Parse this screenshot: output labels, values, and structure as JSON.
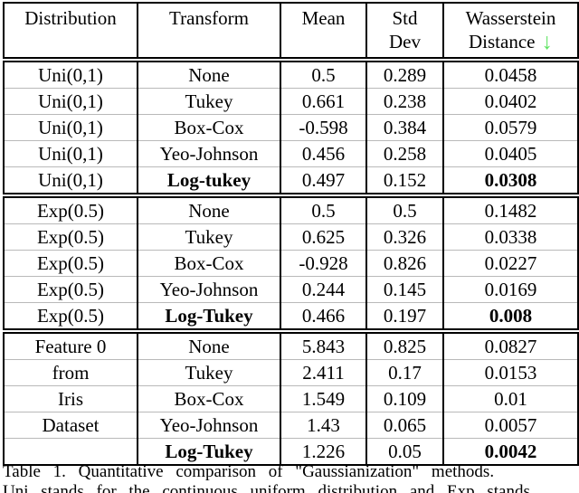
{
  "colors": {
    "arrow_green": "#5fe463",
    "border_black": "#000000",
    "row_separator_gray": "#b9b9b9"
  },
  "table": {
    "header": {
      "distribution": "Distribution",
      "transform": "Transform",
      "mean": "Mean",
      "std_line1": "Std",
      "std_line2": "Dev",
      "wasserstein_line1": "Wasserstein",
      "wasserstein_line2": "Distance",
      "sort_arrow": "↓"
    },
    "blocks": [
      {
        "rows": [
          {
            "distribution": "Uni(0,1)",
            "transform": "None",
            "mean": "0.5",
            "std": "0.289",
            "wasserstein": "0.0458",
            "bold": false
          },
          {
            "distribution": "Uni(0,1)",
            "transform": "Tukey",
            "mean": "0.661",
            "std": "0.238",
            "wasserstein": "0.0402",
            "bold": false
          },
          {
            "distribution": "Uni(0,1)",
            "transform": "Box-Cox",
            "mean": "-0.598",
            "std": "0.384",
            "wasserstein": "0.0579",
            "bold": false
          },
          {
            "distribution": "Uni(0,1)",
            "transform": "Yeo-Johnson",
            "mean": "0.456",
            "std": "0.258",
            "wasserstein": "0.0405",
            "bold": false
          },
          {
            "distribution": "Uni(0,1)",
            "transform": "Log-tukey",
            "mean": "0.497",
            "std": "0.152",
            "wasserstein": "0.0308",
            "bold": true
          }
        ]
      },
      {
        "rows": [
          {
            "distribution": "Exp(0.5)",
            "transform": "None",
            "mean": "0.5",
            "std": "0.5",
            "wasserstein": "0.1482",
            "bold": false
          },
          {
            "distribution": "Exp(0.5)",
            "transform": "Tukey",
            "mean": "0.625",
            "std": "0.326",
            "wasserstein": "0.0338",
            "bold": false
          },
          {
            "distribution": "Exp(0.5)",
            "transform": "Box-Cox",
            "mean": "-0.928",
            "std": "0.826",
            "wasserstein": "0.0227",
            "bold": false
          },
          {
            "distribution": "Exp(0.5)",
            "transform": "Yeo-Johnson",
            "mean": "0.244",
            "std": "0.145",
            "wasserstein": "0.0169",
            "bold": false
          },
          {
            "distribution": "Exp(0.5)",
            "transform": "Log-Tukey",
            "mean": "0.466",
            "std": "0.197",
            "wasserstein": "0.008",
            "bold": true
          }
        ]
      },
      {
        "rows": [
          {
            "distribution": "Feature 0",
            "transform": "None",
            "mean": "5.843",
            "std": "0.825",
            "wasserstein": "0.0827",
            "bold": false
          },
          {
            "distribution": "from",
            "transform": "Tukey",
            "mean": "2.411",
            "std": "0.17",
            "wasserstein": "0.0153",
            "bold": false
          },
          {
            "distribution": "Iris",
            "transform": "Box-Cox",
            "mean": "1.549",
            "std": "0.109",
            "wasserstein": "0.01",
            "bold": false
          },
          {
            "distribution": "Dataset",
            "transform": "Yeo-Johnson",
            "mean": "1.43",
            "std": "0.065",
            "wasserstein": "0.0057",
            "bold": false
          },
          {
            "distribution": "",
            "transform": "Log-Tukey",
            "mean": "1.226",
            "std": "0.05",
            "wasserstein": "0.0042",
            "bold": true
          }
        ]
      }
    ]
  },
  "caption": {
    "line1": "Table 1. Quantitative comparison of \"Gaussianization\" methods.",
    "line2_partial": "Uni stands for the continuous uniform distribution and Exp stands"
  }
}
